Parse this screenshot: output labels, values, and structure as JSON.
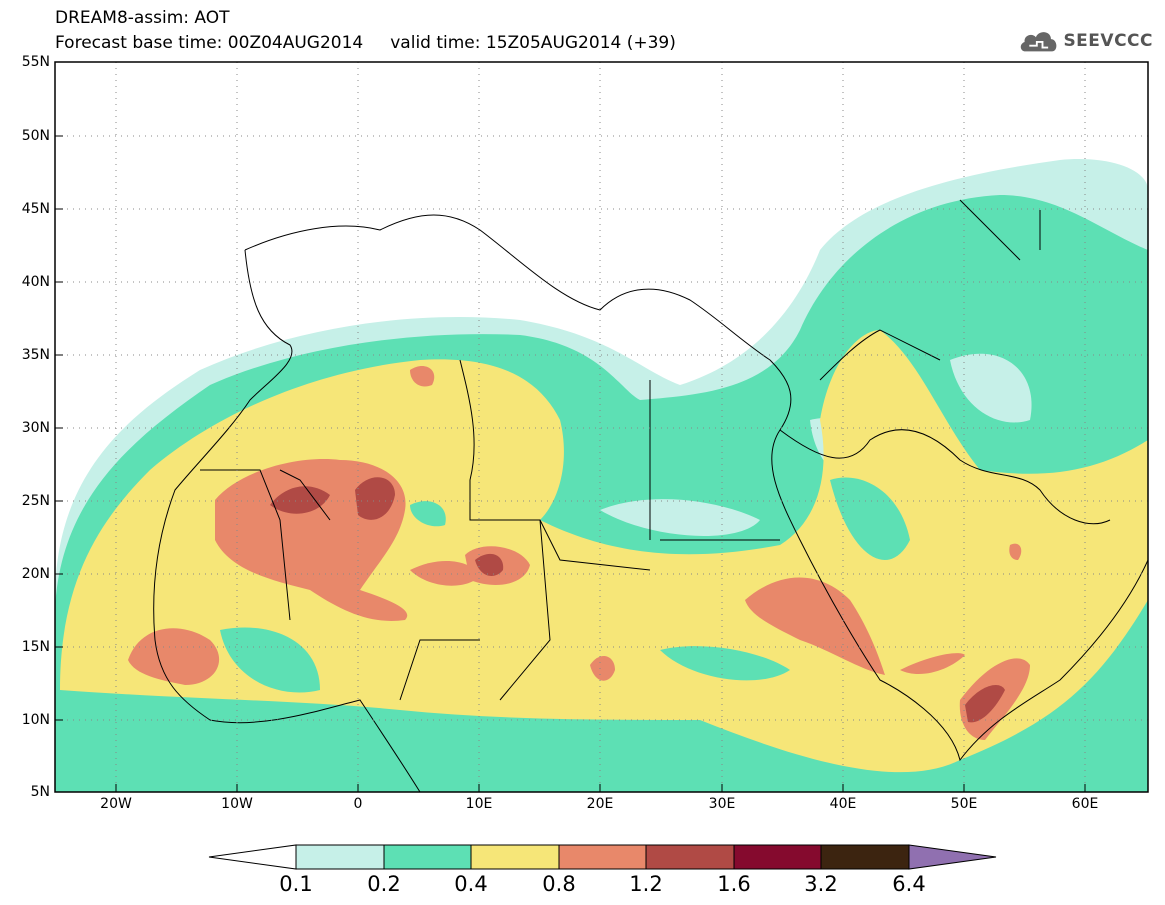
{
  "header": {
    "line1": "DREAM8-assim: AOT",
    "line2": "Forecast base time: 00Z04AUG2014     valid time: 15Z05AUG2014 (+39)",
    "logo_text": "SEEVCCC"
  },
  "axes": {
    "lat_labels": [
      "55N",
      "50N",
      "45N",
      "40N",
      "35N",
      "30N",
      "25N",
      "20N",
      "15N",
      "10N",
      "5N"
    ],
    "lon_labels": [
      "20W",
      "10W",
      "0",
      "10E",
      "20E",
      "30E",
      "40E",
      "50E",
      "60E"
    ]
  },
  "colorbar": {
    "labels": [
      "0.1",
      "0.2",
      "0.4",
      "0.8",
      "1.2",
      "1.6",
      "3.2",
      "6.4"
    ],
    "colors": [
      "#ffffff",
      "#c6f0e8",
      "#5de0b4",
      "#f6e678",
      "#e8886a",
      "#b04a45",
      "#850a2e",
      "#3c2410",
      "#9070b0"
    ]
  },
  "map": {
    "variable": "AOT",
    "lon_range": [
      -25,
      65
    ],
    "lat_range": [
      5,
      55
    ]
  }
}
